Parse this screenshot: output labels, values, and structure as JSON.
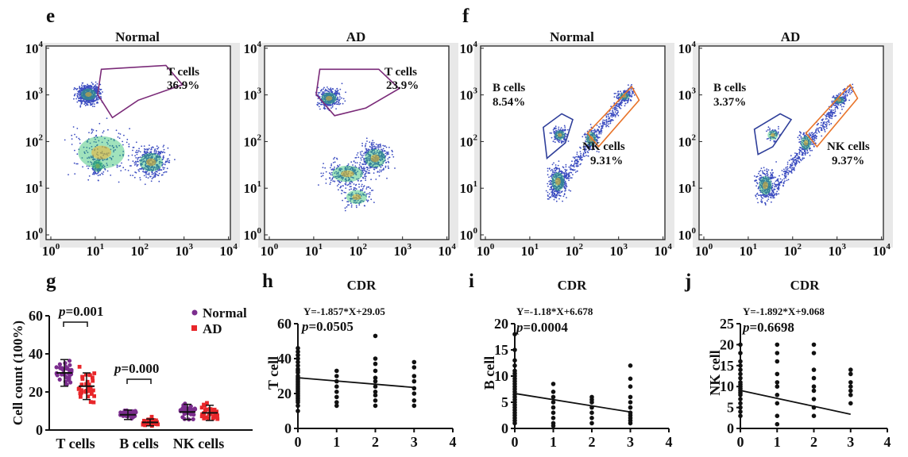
{
  "panels": {
    "e": {
      "letter": "e",
      "plots": [
        {
          "title": "Normal",
          "gates": [
            {
              "name": "T cells",
              "value": "36.9%"
            }
          ]
        },
        {
          "title": "AD",
          "gates": [
            {
              "name": "T cells",
              "value": "23.9%"
            }
          ]
        }
      ]
    },
    "f": {
      "letter": "f",
      "plots": [
        {
          "title": "Normal",
          "gates": [
            {
              "name": "B cells",
              "value": "8.54%"
            },
            {
              "name": "NK cells",
              "value": "9.31%"
            }
          ]
        },
        {
          "title": "AD",
          "gates": [
            {
              "name": "B cells",
              "value": "3.37%"
            },
            {
              "name": "NK cells",
              "value": "9.37%"
            }
          ]
        }
      ]
    },
    "g": {
      "letter": "g"
    },
    "h": {
      "letter": "h",
      "title": "CDR",
      "equation": "Y=-1.857*X+29.05",
      "p_label": "p",
      "p_value": "=0.0505"
    },
    "i": {
      "letter": "i",
      "title": "CDR",
      "equation": "Y=-1.18*X+6.678",
      "p_label": "p",
      "p_value": "=0.0004"
    },
    "j": {
      "letter": "j",
      "title": "CDR",
      "equation": "Y=-1.892*X+9.068",
      "p_label": "p",
      "p_value": "=0.6698"
    }
  },
  "flow_axis_ticks": [
    "10",
    "10",
    "10",
    "10",
    "10"
  ],
  "flow_axis_exponents": [
    "0",
    "1",
    "2",
    "3",
    "4"
  ],
  "colors": {
    "normal": "#7b2d8e",
    "ad": "#e8262a",
    "gate_t": "#7a2a78",
    "gate_b": "#2f3f9a",
    "gate_nk": "#e8742a",
    "dots": "#3b4cc0"
  },
  "chart_data": [
    {
      "panel": "g",
      "type": "scatter",
      "ylabel": "Cell count (100%)",
      "ylim": [
        0,
        60
      ],
      "yticks": [
        "0",
        "20",
        "40",
        "60"
      ],
      "categories": [
        "T cells",
        "B cells",
        "NK cells"
      ],
      "series": [
        {
          "name": "Normal",
          "color": "#7b2d8e",
          "means": [
            30,
            8,
            9.5
          ],
          "sd": [
            7,
            2.5,
            4
          ]
        },
        {
          "name": "AD",
          "color": "#e8262a",
          "means": [
            23,
            4,
            9
          ],
          "sd": [
            7,
            1.8,
            4
          ]
        }
      ],
      "comparisons": [
        {
          "label": "p",
          "value": "=0.001",
          "between": "T cells"
        },
        {
          "label": "p",
          "value": "=0.000",
          "between": "B cells"
        }
      ]
    },
    {
      "panel": "h",
      "type": "scatter",
      "title": "CDR",
      "ylabel": "T cell",
      "xlim": [
        0,
        4
      ],
      "ylim": [
        0,
        60
      ],
      "xticks": [
        "0",
        "1",
        "2",
        "3",
        "4"
      ],
      "yticks": [
        "0",
        "20",
        "40",
        "60"
      ],
      "points": [
        [
          0,
          46
        ],
        [
          0,
          44
        ],
        [
          0,
          42
        ],
        [
          0,
          40
        ],
        [
          0,
          38
        ],
        [
          0,
          36
        ],
        [
          0,
          34
        ],
        [
          0,
          33
        ],
        [
          0,
          32
        ],
        [
          0,
          30
        ],
        [
          0,
          29
        ],
        [
          0,
          28
        ],
        [
          0,
          27
        ],
        [
          0,
          26
        ],
        [
          0,
          25
        ],
        [
          0,
          24
        ],
        [
          0,
          23
        ],
        [
          0,
          22
        ],
        [
          0,
          21
        ],
        [
          0,
          20
        ],
        [
          0,
          19
        ],
        [
          0,
          18
        ],
        [
          0,
          17
        ],
        [
          0,
          16
        ],
        [
          0,
          15
        ],
        [
          0,
          13
        ],
        [
          0,
          10
        ],
        [
          1,
          33
        ],
        [
          1,
          30
        ],
        [
          1,
          27
        ],
        [
          1,
          24
        ],
        [
          1,
          21
        ],
        [
          1,
          18
        ],
        [
          1,
          15
        ],
        [
          1,
          13
        ],
        [
          2,
          53
        ],
        [
          2,
          40
        ],
        [
          2,
          37
        ],
        [
          2,
          33
        ],
        [
          2,
          29
        ],
        [
          2,
          27
        ],
        [
          2,
          24
        ],
        [
          2,
          21
        ],
        [
          2,
          19
        ],
        [
          2,
          16
        ],
        [
          2,
          13
        ],
        [
          3,
          38
        ],
        [
          3,
          35
        ],
        [
          3,
          30
        ],
        [
          3,
          27
        ],
        [
          3,
          23
        ],
        [
          3,
          20
        ],
        [
          3,
          16
        ],
        [
          3,
          13
        ]
      ],
      "fit": {
        "slope": -1.857,
        "intercept": 29.05
      }
    },
    {
      "panel": "i",
      "type": "scatter",
      "title": "CDR",
      "ylabel": "B cell",
      "xlim": [
        0,
        4
      ],
      "ylim": [
        0,
        20
      ],
      "xticks": [
        "0",
        "1",
        "2",
        "3",
        "4"
      ],
      "yticks": [
        "0",
        "5",
        "10",
        "15",
        "20"
      ],
      "points": [
        [
          0,
          18
        ],
        [
          0,
          15
        ],
        [
          0,
          13
        ],
        [
          0,
          12
        ],
        [
          0,
          11
        ],
        [
          0,
          10.5
        ],
        [
          0,
          10
        ],
        [
          0,
          9.5
        ],
        [
          0,
          9
        ],
        [
          0,
          8.5
        ],
        [
          0,
          8
        ],
        [
          0,
          7.5
        ],
        [
          0,
          7
        ],
        [
          0,
          6.5
        ],
        [
          0,
          6
        ],
        [
          0,
          5.5
        ],
        [
          0,
          5
        ],
        [
          0,
          4.5
        ],
        [
          0,
          4
        ],
        [
          0,
          3.5
        ],
        [
          0,
          3
        ],
        [
          0,
          2.5
        ],
        [
          0,
          2
        ],
        [
          0,
          1.5
        ],
        [
          0,
          1
        ],
        [
          1,
          8.5
        ],
        [
          1,
          7
        ],
        [
          1,
          6
        ],
        [
          1,
          5
        ],
        [
          1,
          4
        ],
        [
          1,
          3
        ],
        [
          1,
          2
        ],
        [
          1,
          1
        ],
        [
          1,
          0.5
        ],
        [
          2,
          6
        ],
        [
          2,
          5.5
        ],
        [
          2,
          5
        ],
        [
          2,
          4
        ],
        [
          2,
          3
        ],
        [
          2,
          2
        ],
        [
          2,
          1
        ],
        [
          3,
          12
        ],
        [
          3,
          9.5
        ],
        [
          3,
          8
        ],
        [
          3,
          6
        ],
        [
          3,
          5
        ],
        [
          3,
          4
        ],
        [
          3,
          3
        ],
        [
          3,
          2.5
        ],
        [
          3,
          2
        ],
        [
          3,
          1.5
        ],
        [
          3,
          1
        ]
      ],
      "fit": {
        "slope": -1.18,
        "intercept": 6.678
      }
    },
    {
      "panel": "j",
      "type": "scatter",
      "title": "CDR",
      "ylabel": "NK cell",
      "xlim": [
        0,
        4
      ],
      "ylim": [
        0,
        25
      ],
      "xticks": [
        "0",
        "1",
        "2",
        "3",
        "4"
      ],
      "yticks": [
        "0",
        "5",
        "10",
        "15",
        "20",
        "25"
      ],
      "points": [
        [
          0,
          20
        ],
        [
          0,
          18
        ],
        [
          0,
          16
        ],
        [
          0,
          15
        ],
        [
          0,
          14
        ],
        [
          0,
          13
        ],
        [
          0,
          12
        ],
        [
          0,
          11
        ],
        [
          0,
          10.5
        ],
        [
          0,
          10
        ],
        [
          0,
          9.5
        ],
        [
          0,
          9
        ],
        [
          0,
          8.5
        ],
        [
          0,
          8
        ],
        [
          0,
          7
        ],
        [
          0,
          6
        ],
        [
          0,
          5
        ],
        [
          0,
          4
        ],
        [
          0,
          3
        ],
        [
          1,
          20
        ],
        [
          1,
          18
        ],
        [
          1,
          16
        ],
        [
          1,
          13
        ],
        [
          1,
          11
        ],
        [
          1,
          10
        ],
        [
          1,
          8
        ],
        [
          1,
          6
        ],
        [
          1,
          3
        ],
        [
          1,
          1
        ],
        [
          2,
          20
        ],
        [
          2,
          18
        ],
        [
          2,
          14
        ],
        [
          2,
          12
        ],
        [
          2,
          10
        ],
        [
          2,
          9
        ],
        [
          2,
          7
        ],
        [
          2,
          5
        ],
        [
          2,
          3
        ],
        [
          3,
          14
        ],
        [
          3,
          13
        ],
        [
          3,
          11
        ],
        [
          3,
          10
        ],
        [
          3,
          9
        ],
        [
          3,
          8
        ],
        [
          3,
          6
        ]
      ],
      "fit": {
        "slope": -1.892,
        "intercept": 9.068
      }
    }
  ]
}
